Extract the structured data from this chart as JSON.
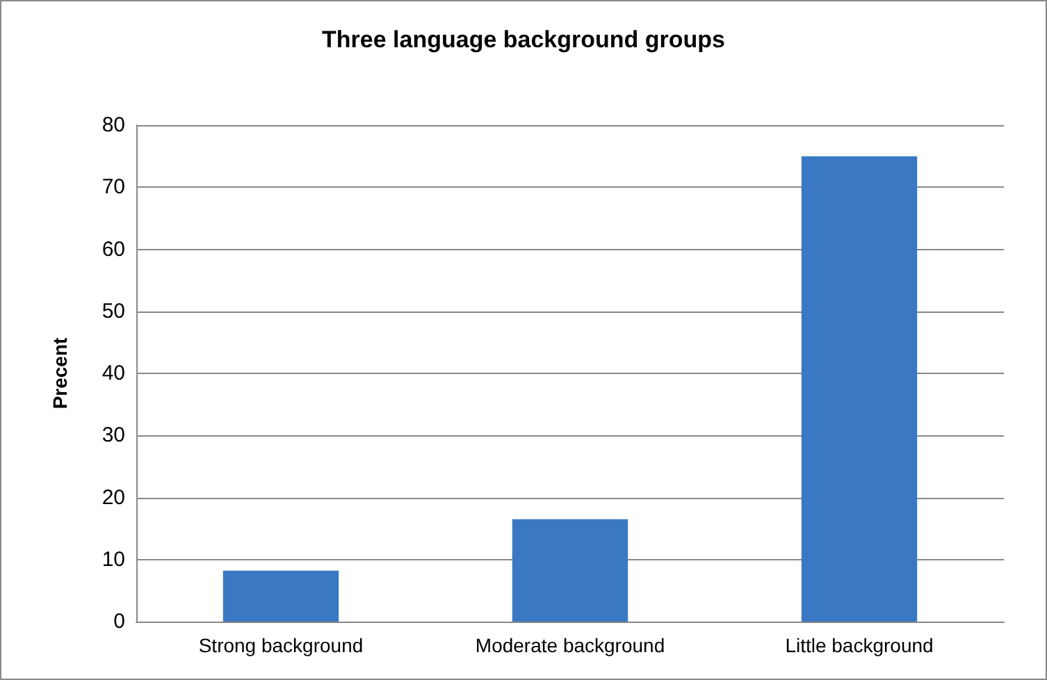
{
  "chart_data": {
    "type": "bar",
    "title": "Three language background groups",
    "ylabel": "Precent",
    "categories": [
      "Strong background",
      "Moderate background",
      "Little background"
    ],
    "values": [
      8.2,
      16.5,
      75
    ],
    "color": "#3a78c4",
    "ylim": [
      0,
      80
    ],
    "yticks": [
      0,
      10,
      20,
      30,
      40,
      50,
      60,
      70,
      80
    ],
    "grid": "y"
  }
}
